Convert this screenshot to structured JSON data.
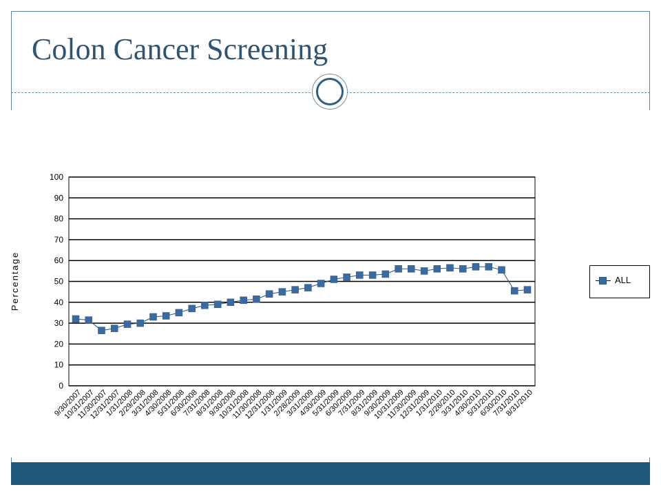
{
  "slide": {
    "title": "Colon Cancer Screening"
  },
  "chart_data": {
    "type": "line",
    "title": "",
    "xlabel": "",
    "ylabel": "Percentage",
    "ylim": [
      0,
      100
    ],
    "yticks": [
      0,
      10,
      20,
      30,
      40,
      50,
      60,
      70,
      80,
      90,
      100
    ],
    "grid": true,
    "legend": "right",
    "categories": [
      "9/30/2007",
      "10/31/2007",
      "11/30/2007",
      "12/31/2007",
      "1/31/2008",
      "2/29/2008",
      "3/31/2008",
      "4/30/2008",
      "5/31/2008",
      "6/30/2008",
      "7/31/2008",
      "8/31/2008",
      "9/30/2008",
      "10/31/2008",
      "11/30/2008",
      "12/31/2008",
      "1/31/2009",
      "2/28/2009",
      "3/31/2009",
      "4/30/2009",
      "5/31/2009",
      "6/30/2009",
      "7/31/2009",
      "8/31/2009",
      "9/30/2009",
      "10/31/2009",
      "11/30/2009",
      "12/31/2009",
      "1/31/2010",
      "2/28/2010",
      "3/31/2010",
      "4/30/2010",
      "5/31/2010",
      "6/30/2010",
      "7/31/2010",
      "8/31/2010"
    ],
    "series": [
      {
        "name": "ALL",
        "color": "#3b6aa0",
        "values": [
          32,
          31.5,
          26.5,
          27.5,
          29.5,
          30,
          33,
          33.5,
          35,
          37,
          38.5,
          39,
          40,
          41,
          41.5,
          44,
          45,
          46,
          47,
          49,
          51,
          52,
          53,
          53,
          53.5,
          56,
          56,
          55,
          56,
          56.5,
          56,
          57,
          57,
          55.5,
          45.5,
          46
        ]
      }
    ]
  }
}
